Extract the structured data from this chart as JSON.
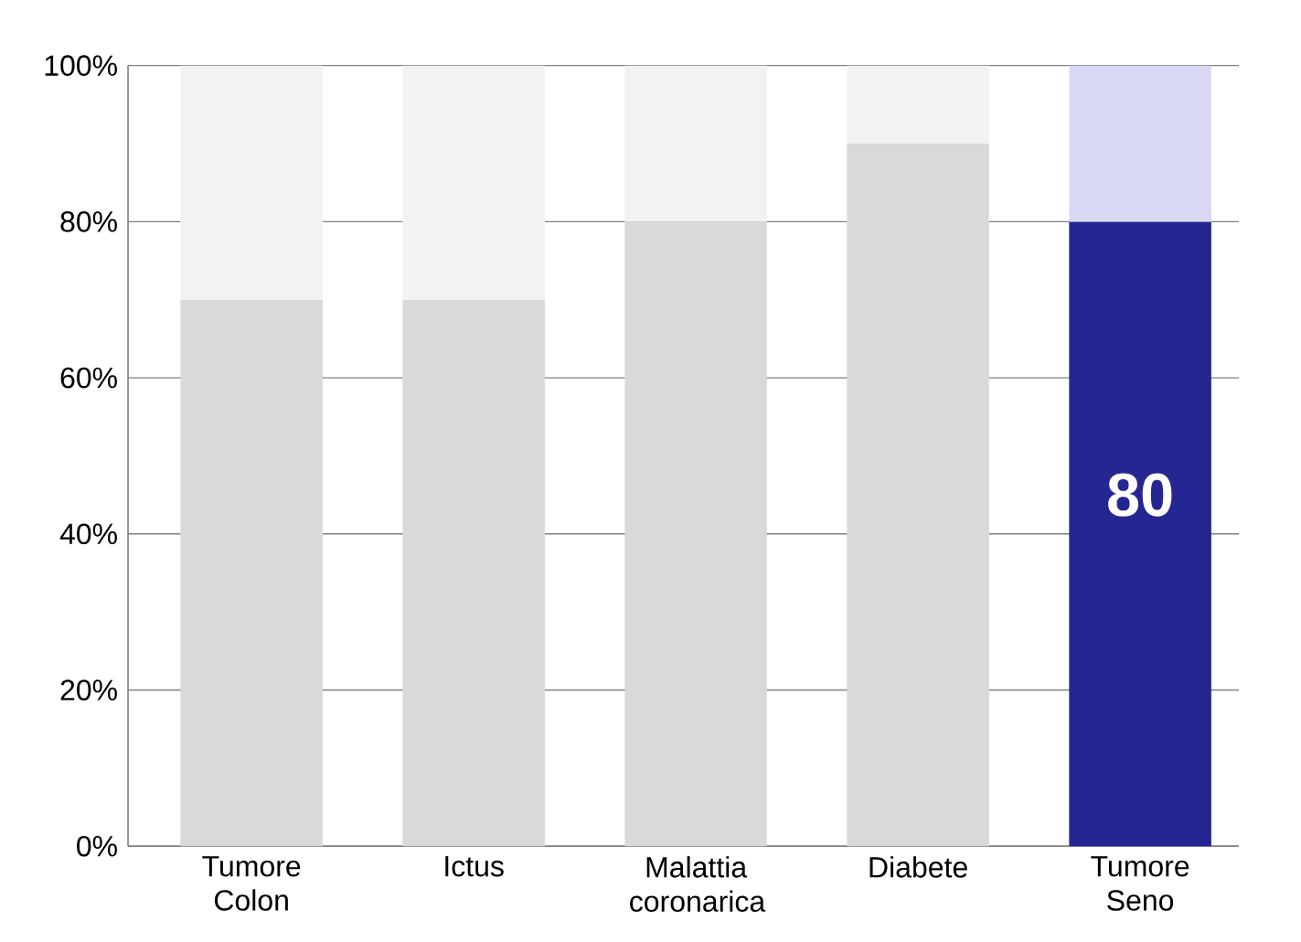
{
  "chart_data": {
    "type": "bar",
    "stacked": true,
    "categories": [
      "Tumore Colon",
      "Ictus",
      "Malattia coronarica",
      "Diabete",
      "Tumore Seno"
    ],
    "series": [
      {
        "values": [
          70,
          70,
          80,
          90,
          80
        ],
        "colors": [
          "#d9d9d9",
          "#d9d9d9",
          "#d9d9d9",
          "#d9d9d9",
          "#262693"
        ],
        "value_labels": [
          null,
          null,
          null,
          null,
          "80"
        ]
      },
      {
        "values": [
          30,
          30,
          20,
          10,
          20
        ],
        "colors": [
          "#f2f2f2",
          "#f2f2f2",
          "#f2f2f2",
          "#f2f2f2",
          "#d8d8f5"
        ]
      }
    ],
    "ylim": [
      0,
      100
    ],
    "yticks": [
      {
        "value": 0,
        "label": "0%"
      },
      {
        "value": 20,
        "label": "20%"
      },
      {
        "value": 40,
        "label": "40%"
      },
      {
        "value": 60,
        "label": "60%"
      },
      {
        "value": 80,
        "label": "80%"
      },
      {
        "value": 100,
        "label": "100%"
      }
    ],
    "grid": "y"
  }
}
